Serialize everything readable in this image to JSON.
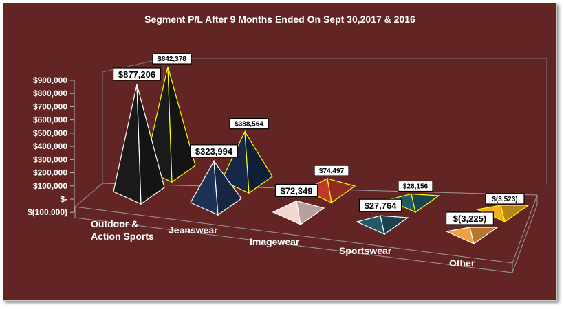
{
  "chart_data": {
    "type": "bar",
    "style": "3d-pyramid",
    "title": "Segment P/L After 9 Months Ended On Sept 30,2017 & 2016",
    "categories": [
      [
        "Outdoor &",
        "Action Sports"
      ],
      [
        "Jeanswear"
      ],
      [
        "Imagewear"
      ],
      [
        "Sportswear"
      ],
      [
        "Other"
      ]
    ],
    "series": [
      {
        "color": "#1a1a1a",
        "values": [
          877206,
          323994,
          72349,
          27764,
          -3225
        ],
        "labels": [
          "$877,206",
          "$323,994",
          "$72,349",
          "$27,764",
          "$(3,225)"
        ]
      },
      {
        "color": "#15284a",
        "values": [
          842378,
          388564,
          74497,
          26156,
          -3523
        ],
        "labels": [
          "$842,378",
          "$388,564",
          "$74,497",
          "$26,156",
          "$(3,523)"
        ]
      }
    ],
    "point_colors_front": [
      "#1a1a1a",
      "#1e3256",
      "#f2d6d2",
      "#215a66",
      "#f0a040"
    ],
    "point_colors_back": [
      "#1a1a1a",
      "#15284a",
      "#c0392b",
      "#215a66",
      "#f0b020"
    ],
    "edge_colors": [
      "#ffffff",
      "#ffff00"
    ],
    "ylim": [
      -100000,
      900000
    ],
    "yticks": [
      -100000,
      0,
      100000,
      200000,
      300000,
      400000,
      500000,
      600000,
      700000,
      800000,
      900000
    ],
    "ytick_labels": [
      "$(100,000)",
      "$-",
      "$100,000",
      "$200,000",
      "$300,000",
      "$400,000",
      "$500,000",
      "$600,000",
      "$700,000",
      "$800,000",
      "$900,000"
    ],
    "grid": false,
    "legend": "none",
    "background": "#632523"
  }
}
